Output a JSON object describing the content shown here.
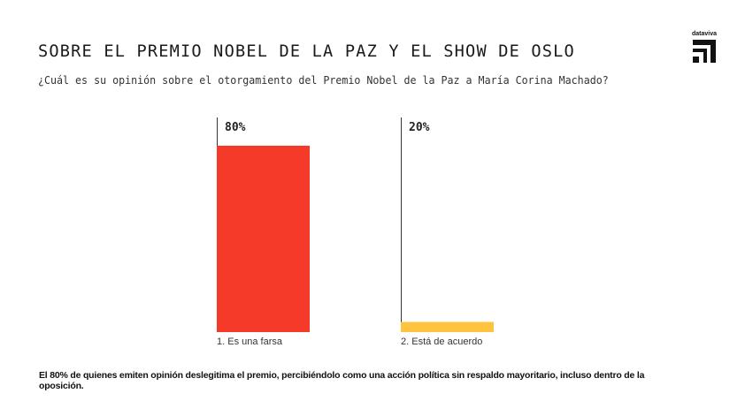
{
  "header": {
    "title": "SOBRE EL PREMIO NOBEL DE LA PAZ Y EL SHOW DE OSLO",
    "subtitle": "¿Cuál es su opinión sobre el otorgamiento del Premio Nobel de la Paz a María Corina Machado?"
  },
  "logo": {
    "text": "dataviva",
    "icon": "dataviva-logo-icon"
  },
  "colors": {
    "bar1": "#F63A2A",
    "bar2": "#FEC43F",
    "axis": "#333333"
  },
  "chart_data": {
    "type": "bar",
    "title": "SOBRE EL PREMIO NOBEL DE LA PAZ Y EL SHOW DE OSLO",
    "subtitle": "¿Cuál es su opinión sobre el otorgamiento del Premio Nobel de la Paz a María Corina Machado?",
    "categories": [
      "1. Es una farsa",
      "2. Está de acuerdo"
    ],
    "values": [
      80,
      20
    ],
    "value_labels": [
      "80%",
      "20%"
    ],
    "ylabel": "",
    "xlabel": "",
    "ylim": [
      0,
      100
    ],
    "grid": false,
    "legend": "none",
    "note": "Bar heights in the image appear not strictly proportional to the labeled values."
  },
  "footer": {
    "note": "El 80% de quienes emiten opinión deslegitima el premio, percibiéndolo como una acción política sin respaldo mayoritario, incluso dentro de la oposición."
  }
}
